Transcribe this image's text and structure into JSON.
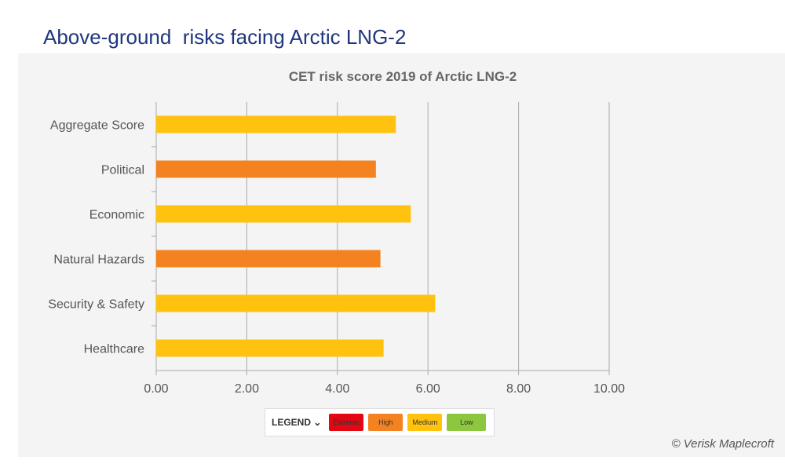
{
  "page_title": "Above-ground  risks facing Arctic LNG-2",
  "copyright": "© Verisk Maplecroft",
  "legend": {
    "label": "LEGEND",
    "icon": "chevron-down-icon",
    "items": [
      {
        "label": "Extreme",
        "color": "#e30613"
      },
      {
        "label": "High",
        "color": "#f58220"
      },
      {
        "label": "Medium",
        "color": "#ffc20e"
      },
      {
        "label": "Low",
        "color": "#8dc63f"
      }
    ]
  },
  "chart_data": {
    "type": "bar",
    "orientation": "horizontal",
    "title": "CET risk score 2019 of Arctic LNG-2",
    "categories": [
      "Aggregate Score",
      "Political",
      "Economic",
      "Natural Hazards",
      "Security & Safety",
      "Healthcare"
    ],
    "values": [
      5.29,
      4.85,
      5.62,
      4.95,
      6.16,
      5.02
    ],
    "risk_levels": [
      "Medium",
      "High",
      "Medium",
      "High",
      "Medium",
      "Medium"
    ],
    "xlim": [
      0,
      10
    ],
    "xticks": [
      "0.00",
      "2.00",
      "4.00",
      "6.00",
      "8.00",
      "10.00"
    ],
    "grid": "vertical",
    "legend_position": "bottom"
  }
}
